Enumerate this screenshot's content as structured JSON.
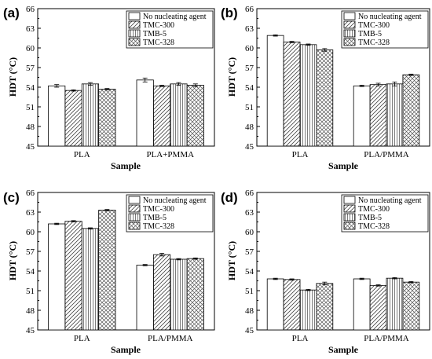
{
  "figure": {
    "legend_entries": [
      "No nucleating agent",
      "TMC-300",
      "TMB-5",
      "TMC-328"
    ],
    "colors": {
      "axis": "#000000",
      "bar_fill": "#ffffff",
      "hatch": "#444444"
    }
  },
  "chart_data": [
    {
      "type": "bar",
      "panel_label": "(a)",
      "categories": [
        "PLA",
        "PLA+PMMA"
      ],
      "xlabel": "Sample",
      "ylabel": "HDT (°C)",
      "ylim": [
        45,
        66
      ],
      "yticks": [
        45,
        48,
        51,
        54,
        57,
        60,
        63,
        66
      ],
      "legend_placement": "top-right",
      "series": [
        {
          "name": "No nucleating agent",
          "values": [
            54.2,
            55.1
          ],
          "errors": [
            0.2,
            0.3
          ],
          "pattern": "none"
        },
        {
          "name": "TMC-300",
          "values": [
            53.5,
            54.2
          ],
          "errors": [
            0.1,
            0.1
          ],
          "pattern": "diag"
        },
        {
          "name": "TMB-5",
          "values": [
            54.5,
            54.5
          ],
          "errors": [
            0.2,
            0.2
          ],
          "pattern": "vert"
        },
        {
          "name": "TMC-328",
          "values": [
            53.7,
            54.3
          ],
          "errors": [
            0.1,
            0.2
          ],
          "pattern": "cross"
        }
      ]
    },
    {
      "type": "bar",
      "panel_label": "(b)",
      "categories": [
        "PLA",
        "PLA/PMMA"
      ],
      "xlabel": "Sample",
      "ylabel": "HDT (°C)",
      "ylim": [
        45,
        66
      ],
      "yticks": [
        45,
        48,
        51,
        54,
        57,
        60,
        63,
        66
      ],
      "legend_placement": "top-right",
      "series": [
        {
          "name": "No nucleating agent",
          "values": [
            61.9,
            54.2
          ],
          "errors": [
            0.1,
            0.1
          ],
          "pattern": "none"
        },
        {
          "name": "TMC-300",
          "values": [
            60.9,
            54.4
          ],
          "errors": [
            0.1,
            0.2
          ],
          "pattern": "diag"
        },
        {
          "name": "TMB-5",
          "values": [
            60.5,
            54.5
          ],
          "errors": [
            0.1,
            0.3
          ],
          "pattern": "vert"
        },
        {
          "name": "TMC-328",
          "values": [
            59.7,
            55.9
          ],
          "errors": [
            0.2,
            0.1
          ],
          "pattern": "cross"
        }
      ]
    },
    {
      "type": "bar",
      "panel_label": "(c)",
      "categories": [
        "PLA",
        "PLA/PMMA"
      ],
      "xlabel": "Sample",
      "ylabel": "HDT (°C)",
      "ylim": [
        45,
        66
      ],
      "yticks": [
        45,
        48,
        51,
        54,
        57,
        60,
        63,
        66
      ],
      "legend_placement": "top-right",
      "series": [
        {
          "name": "No nucleating agent",
          "values": [
            61.2,
            54.9
          ],
          "errors": [
            0.1,
            0.1
          ],
          "pattern": "none"
        },
        {
          "name": "TMC-300",
          "values": [
            61.6,
            56.5
          ],
          "errors": [
            0.1,
            0.2
          ],
          "pattern": "diag"
        },
        {
          "name": "TMB-5",
          "values": [
            60.5,
            55.8
          ],
          "errors": [
            0.1,
            0.1
          ],
          "pattern": "vert"
        },
        {
          "name": "TMC-328",
          "values": [
            63.3,
            55.9
          ],
          "errors": [
            0.1,
            0.1
          ],
          "pattern": "cross"
        }
      ]
    },
    {
      "type": "bar",
      "panel_label": "(d)",
      "categories": [
        "PLA",
        "PLA/PMMA"
      ],
      "xlabel": "Sample",
      "ylabel": "HDT (°C)",
      "ylim": [
        45,
        66
      ],
      "yticks": [
        45,
        48,
        51,
        54,
        57,
        60,
        63,
        66
      ],
      "legend_placement": "top-right",
      "series": [
        {
          "name": "No nucleating agent",
          "values": [
            52.8,
            52.8
          ],
          "errors": [
            0.1,
            0.1
          ],
          "pattern": "none"
        },
        {
          "name": "TMC-300",
          "values": [
            52.7,
            51.8
          ],
          "errors": [
            0.1,
            0.1
          ],
          "pattern": "diag"
        },
        {
          "name": "TMB-5",
          "values": [
            51.1,
            52.9
          ],
          "errors": [
            0.1,
            0.1
          ],
          "pattern": "vert"
        },
        {
          "name": "TMC-328",
          "values": [
            52.1,
            52.3
          ],
          "errors": [
            0.2,
            0.1
          ],
          "pattern": "cross"
        }
      ]
    }
  ]
}
